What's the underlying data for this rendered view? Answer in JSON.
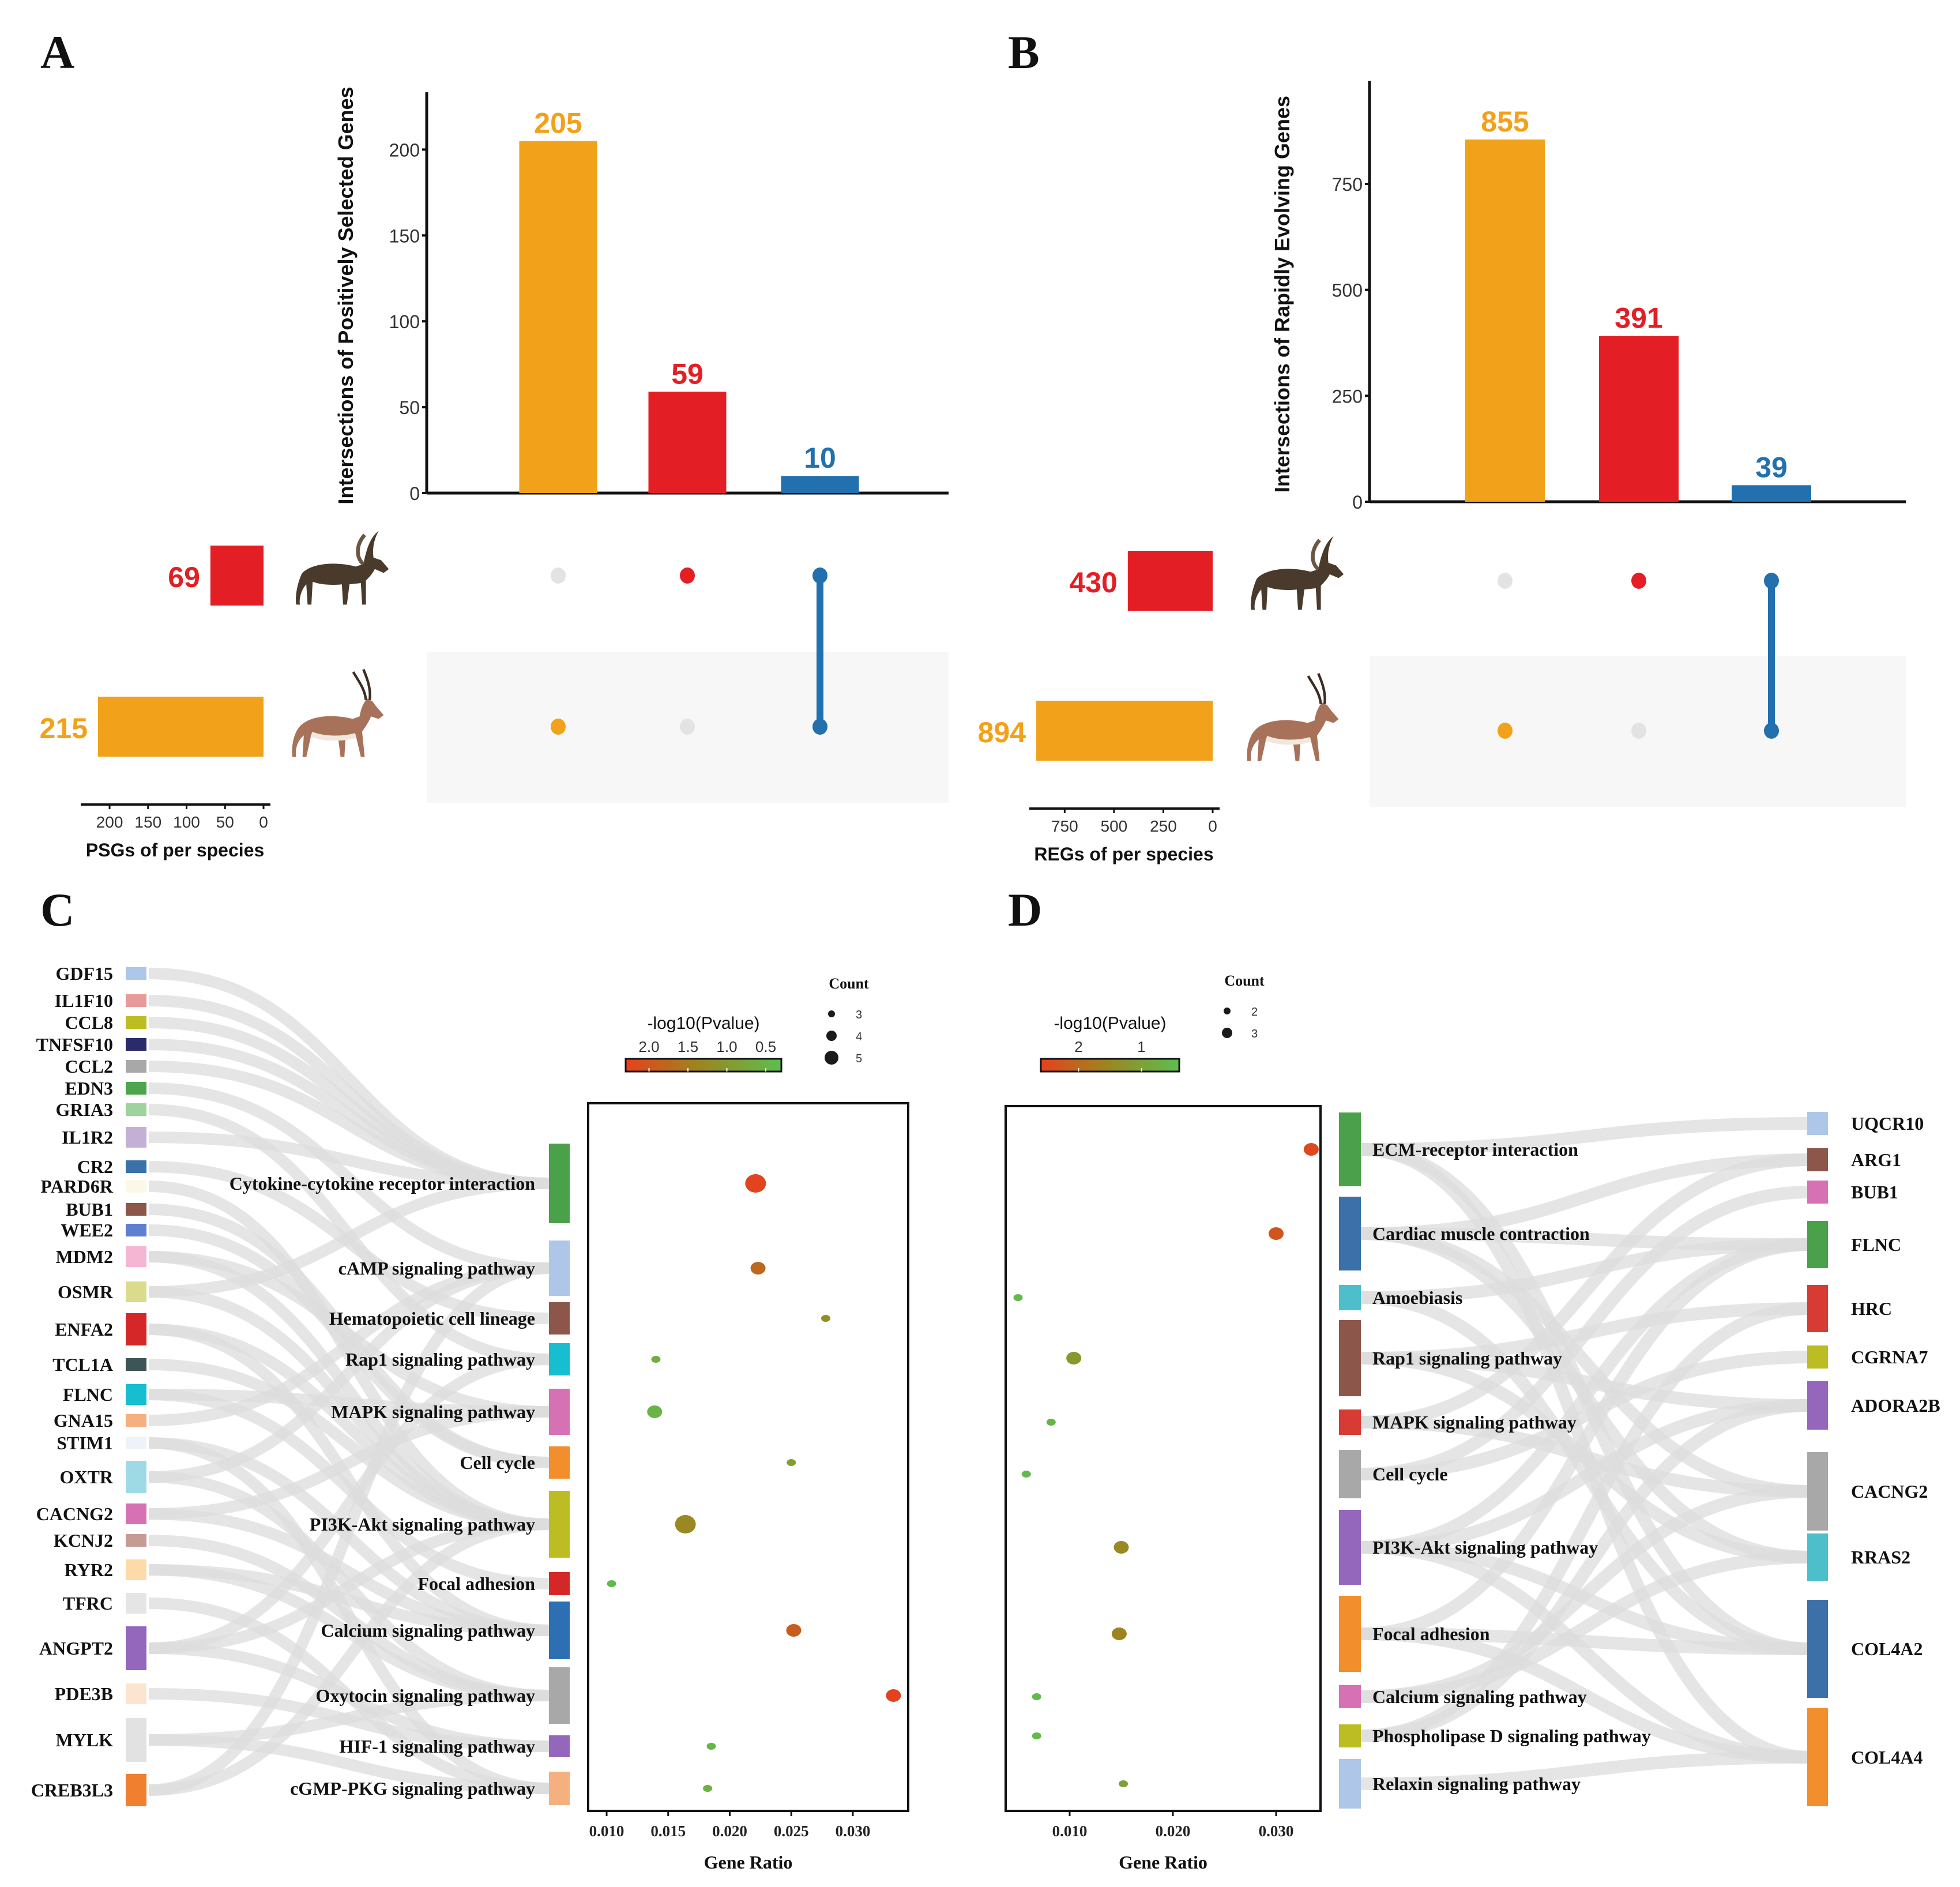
{
  "colors": {
    "orange": "#F2A11A",
    "red": "#E31E24",
    "blue": "#2270AD",
    "grey_dot": "#E3E3E3",
    "shade": "#F7F7F7",
    "flow": "#DCDCDC"
  },
  "chart_data": [
    {
      "panel": "A",
      "type": "bar",
      "subtype": "upset",
      "ylabel": "Intersections of Positively Selected Genes",
      "ylim": [
        0,
        230
      ],
      "yticks": [
        0,
        50,
        100,
        150,
        200
      ],
      "intersections": [
        {
          "value": 205,
          "label": "205",
          "color": "#F2A11A",
          "members": [
            1
          ]
        },
        {
          "value": 59,
          "label": "59",
          "color": "#E31E24",
          "members": [
            0
          ]
        },
        {
          "value": 10,
          "label": "10",
          "color": "#2270AD",
          "members": [
            0,
            1
          ]
        }
      ],
      "set_xlabel": "PSGs of per species",
      "set_xlim": [
        0,
        230
      ],
      "set_xticks": [
        200,
        150,
        100,
        50,
        0
      ],
      "sets": [
        {
          "value": 69,
          "label": "69",
          "color": "#E31E24",
          "icon": "ibex-icon"
        },
        {
          "value": 215,
          "label": "215",
          "color": "#F2A11A",
          "icon": "antelope-icon"
        }
      ]
    },
    {
      "panel": "B",
      "type": "bar",
      "subtype": "upset",
      "ylabel": "Intersections of Rapidly Evolving Genes",
      "ylim": [
        0,
        980
      ],
      "yticks": [
        0,
        250,
        500,
        750
      ],
      "intersections": [
        {
          "value": 855,
          "label": "855",
          "color": "#F2A11A",
          "members": [
            1
          ]
        },
        {
          "value": 391,
          "label": "391",
          "color": "#E31E24",
          "members": [
            0
          ]
        },
        {
          "value": 39,
          "label": "39",
          "color": "#2270AD",
          "members": [
            0,
            1
          ]
        }
      ],
      "set_xlabel": "REGs of per species",
      "set_xlim": [
        0,
        900
      ],
      "set_xticks": [
        750,
        500,
        250,
        0
      ],
      "sets": [
        {
          "value": 430,
          "label": "430",
          "color": "#E31E24",
          "icon": "ibex-icon"
        },
        {
          "value": 894,
          "label": "894",
          "color": "#F2A11A",
          "icon": "antelope-icon"
        }
      ]
    },
    {
      "panel": "C",
      "type": "scatter",
      "subtype": "sankey-dotplot",
      "xlabel": "Gene Ratio",
      "xlim": [
        0.0085,
        0.0345
      ],
      "xticks": [
        0.01,
        0.015,
        0.02,
        0.025,
        0.03
      ],
      "xtick_labels": [
        "0.010",
        "0.015",
        "0.020",
        "0.025",
        "0.030"
      ],
      "color_legend": {
        "title": "-log10(Pvalue)",
        "ticks": [
          "2.0",
          "1.5",
          "1.0",
          "0.5"
        ],
        "range": [
          2.3,
          0.3
        ]
      },
      "size_legend": {
        "title": "Count",
        "values": [
          3,
          4,
          5
        ]
      },
      "genes": [
        {
          "name": "GDF15",
          "color": "#AEC7E8"
        },
        {
          "name": "IL1F10",
          "color": "#E89A9A"
        },
        {
          "name": "CCL8",
          "color": "#BCBD22"
        },
        {
          "name": "TNFSF10",
          "color": "#2B2A6B"
        },
        {
          "name": "CCL2",
          "color": "#A8A8A8"
        },
        {
          "name": "EDN3",
          "color": "#4DA64D"
        },
        {
          "name": "GRIA3",
          "color": "#9ED39B"
        },
        {
          "name": "IL1R2",
          "color": "#C5B0D5"
        },
        {
          "name": "CR2",
          "color": "#3B70A8"
        },
        {
          "name": "PARD6R",
          "color": "#FBF8E8"
        },
        {
          "name": "BUB1",
          "color": "#8C564B"
        },
        {
          "name": "WEE2",
          "color": "#5F7FD1"
        },
        {
          "name": "MDM2",
          "color": "#F4B6D2"
        },
        {
          "name": "OSMR",
          "color": "#DBDB8D"
        },
        {
          "name": "ENFA2",
          "color": "#D62728"
        },
        {
          "name": "TCL1A",
          "color": "#3E5557"
        },
        {
          "name": "FLNC",
          "color": "#17BECF"
        },
        {
          "name": "GNA15",
          "color": "#F6B07F"
        },
        {
          "name": "STIM1",
          "color": "#EDF3F8"
        },
        {
          "name": "OXTR",
          "color": "#9EDAE5"
        },
        {
          "name": "CACNG2",
          "color": "#D671B4"
        },
        {
          "name": "KCNJ2",
          "color": "#C49C94"
        },
        {
          "name": "RYR2",
          "color": "#FDDBA8"
        },
        {
          "name": "TFRC",
          "color": "#E5E5E5"
        },
        {
          "name": "ANGPT2",
          "color": "#9467BD"
        },
        {
          "name": "PDE3B",
          "color": "#FBE5D0"
        },
        {
          "name": "MYLK",
          "color": "#E2E2E2"
        },
        {
          "name": "CREB3L3",
          "color": "#F07F2F"
        }
      ],
      "pathways": [
        {
          "name": "Cytokine-cytokine receptor interaction",
          "color": "#4BA04B",
          "gene_ratio": 0.0221,
          "pvalue": 2.25,
          "count": 5
        },
        {
          "name": "cAMP signaling pathway",
          "color": "#AEC7E8",
          "gene_ratio": 0.0223,
          "pvalue": 1.75,
          "count": 4
        },
        {
          "name": "Hematopoietic cell lineage",
          "color": "#8C564B",
          "gene_ratio": 0.0278,
          "pvalue": 1.2,
          "count": 3
        },
        {
          "name": "Rap1 signaling pathway",
          "color": "#17BECF",
          "gene_ratio": 0.014,
          "pvalue": 0.6,
          "count": 3
        },
        {
          "name": "MAPK signaling pathway",
          "color": "#D671B4",
          "gene_ratio": 0.0139,
          "pvalue": 0.5,
          "count": 4
        },
        {
          "name": "Cell cycle",
          "color": "#F28E2B",
          "gene_ratio": 0.025,
          "pvalue": 0.9,
          "count": 3
        },
        {
          "name": "PI3K-Akt signaling pathway",
          "color": "#BCBD22",
          "gene_ratio": 0.0164,
          "pvalue": 1.3,
          "count": 5
        },
        {
          "name": "Focal adhesion",
          "color": "#D62728",
          "gene_ratio": 0.0104,
          "pvalue": 0.4,
          "count": 3
        },
        {
          "name": "Calcium signaling pathway",
          "color": "#2C6FB3",
          "gene_ratio": 0.0252,
          "pvalue": 1.9,
          "count": 4
        },
        {
          "name": "Oxytocin signaling pathway",
          "color": "#A8A8A8",
          "gene_ratio": 0.0333,
          "pvalue": 2.3,
          "count": 4
        },
        {
          "name": "HIF-1 signaling pathway",
          "color": "#9467BD",
          "gene_ratio": 0.0185,
          "pvalue": 0.45,
          "count": 3
        },
        {
          "name": "cGMP-PKG signaling pathway",
          "color": "#F6B07F",
          "gene_ratio": 0.0182,
          "pvalue": 0.55,
          "count": 3
        }
      ]
    },
    {
      "panel": "D",
      "type": "scatter",
      "subtype": "sankey-dotplot",
      "xlabel": "Gene Ratio",
      "xlim": [
        0.0038,
        0.0343
      ],
      "xticks": [
        0.01,
        0.02,
        0.03
      ],
      "xtick_labels": [
        "0.010",
        "0.020",
        "0.030"
      ],
      "color_legend": {
        "title": "-log10(Pvalue)",
        "ticks": [
          "2",
          "1"
        ],
        "range": [
          2.6,
          0.4
        ]
      },
      "size_legend": {
        "title": "Count",
        "values": [
          2,
          3
        ]
      },
      "pathways": [
        {
          "name": "ECM-receptor interaction",
          "color": "#4BA04B",
          "gene_ratio": 0.0334,
          "pvalue": 2.5,
          "count": 3
        },
        {
          "name": "Cardiac muscle contraction",
          "color": "#3B70A8",
          "gene_ratio": 0.03,
          "pvalue": 2.3,
          "count": 3
        },
        {
          "name": "Amoebiasis",
          "color": "#4CBFCB",
          "gene_ratio": 0.005,
          "pvalue": 0.5,
          "count": 2
        },
        {
          "name": "Rap1 signaling pathway",
          "color": "#8C564B",
          "gene_ratio": 0.0104,
          "pvalue": 1.2,
          "count": 3
        },
        {
          "name": "MAPK signaling pathway",
          "color": "#D83A34",
          "gene_ratio": 0.0082,
          "pvalue": 0.6,
          "count": 2
        },
        {
          "name": "Cell cycle",
          "color": "#A8A8A8",
          "gene_ratio": 0.0058,
          "pvalue": 0.5,
          "count": 2
        },
        {
          "name": "PI3K-Akt signaling pathway",
          "color": "#9467BD",
          "gene_ratio": 0.015,
          "pvalue": 1.5,
          "count": 3
        },
        {
          "name": "Focal adhesion",
          "color": "#F28E2B",
          "gene_ratio": 0.0148,
          "pvalue": 1.6,
          "count": 3
        },
        {
          "name": "Calcium signaling pathway",
          "color": "#D671B4",
          "gene_ratio": 0.0068,
          "pvalue": 0.5,
          "count": 2
        },
        {
          "name": "Phospholipase D signaling pathway",
          "color": "#BCBD22",
          "gene_ratio": 0.0068,
          "pvalue": 0.5,
          "count": 2
        },
        {
          "name": "Relaxin signaling pathway",
          "color": "#AEC7E8",
          "gene_ratio": 0.0152,
          "pvalue": 1.0,
          "count": 2
        }
      ],
      "genes": [
        {
          "name": "UQCR10",
          "color": "#AEC7E8"
        },
        {
          "name": "ARG1",
          "color": "#8C564B"
        },
        {
          "name": "BUB1",
          "color": "#D671B4"
        },
        {
          "name": "FLNC",
          "color": "#4BA04B"
        },
        {
          "name": "HRC",
          "color": "#D83A34"
        },
        {
          "name": "CGRNA7",
          "color": "#BCBD22"
        },
        {
          "name": "ADORA2B",
          "color": "#9467BD"
        },
        {
          "name": "CACNG2",
          "color": "#A8A8A8"
        },
        {
          "name": "RRAS2",
          "color": "#4CBFCB"
        },
        {
          "name": "COL4A2",
          "color": "#3B70A8"
        },
        {
          "name": "COL4A4",
          "color": "#F28E2B"
        }
      ]
    }
  ],
  "panel_letters": {
    "a": "A",
    "b": "B",
    "c": "C",
    "d": "D"
  }
}
